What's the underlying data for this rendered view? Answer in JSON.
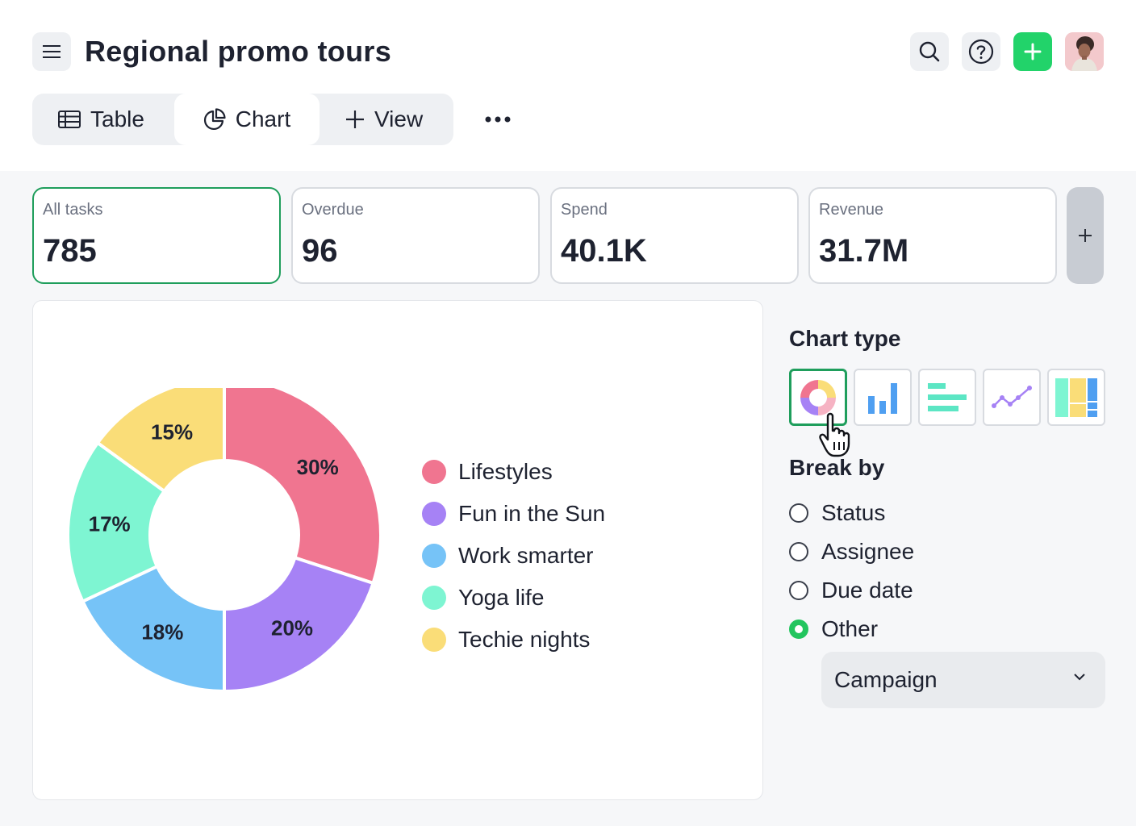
{
  "header": {
    "title": "Regional promo tours",
    "icons": {
      "menu": "menu-icon",
      "search": "search-icon",
      "help": "help-icon",
      "add": "plus-icon"
    },
    "add_color": "#22d36a"
  },
  "tabs": [
    {
      "label": "Table",
      "icon": "table-icon"
    },
    {
      "label": "Chart",
      "icon": "pie-chart-icon",
      "active": true
    },
    {
      "label": "View",
      "icon": "plus-icon"
    }
  ],
  "stats": [
    {
      "label": "All tasks",
      "value": "785",
      "active": true
    },
    {
      "label": "Overdue",
      "value": "96"
    },
    {
      "label": "Spend",
      "value": "40.1K"
    },
    {
      "label": "Revenue",
      "value": "31.7M"
    }
  ],
  "chart_data": {
    "type": "pie",
    "variant": "donut",
    "categories": [
      "Lifestyles",
      "Fun in the Sun",
      "Work smarter",
      "Yoga life",
      "Techie nights"
    ],
    "values": [
      30,
      20,
      18,
      17,
      15
    ],
    "labels": [
      "30%",
      "20%",
      "18%",
      "17%",
      "15%"
    ],
    "colors": [
      "#f07590",
      "#a682f5",
      "#76c3f7",
      "#7ef5d2",
      "#fadd78"
    ],
    "legend_position": "right"
  },
  "sidebar": {
    "chart_type_heading": "Chart type",
    "chart_types": [
      "donut",
      "bar",
      "horizontal-bar",
      "line",
      "treemap"
    ],
    "selected_chart_type": "donut",
    "break_by_heading": "Break by",
    "break_by_options": [
      "Status",
      "Assignee",
      "Due date",
      "Other"
    ],
    "selected_break_by": "Other",
    "select_value": "Campaign",
    "accent_color": "#1f9e5c"
  }
}
